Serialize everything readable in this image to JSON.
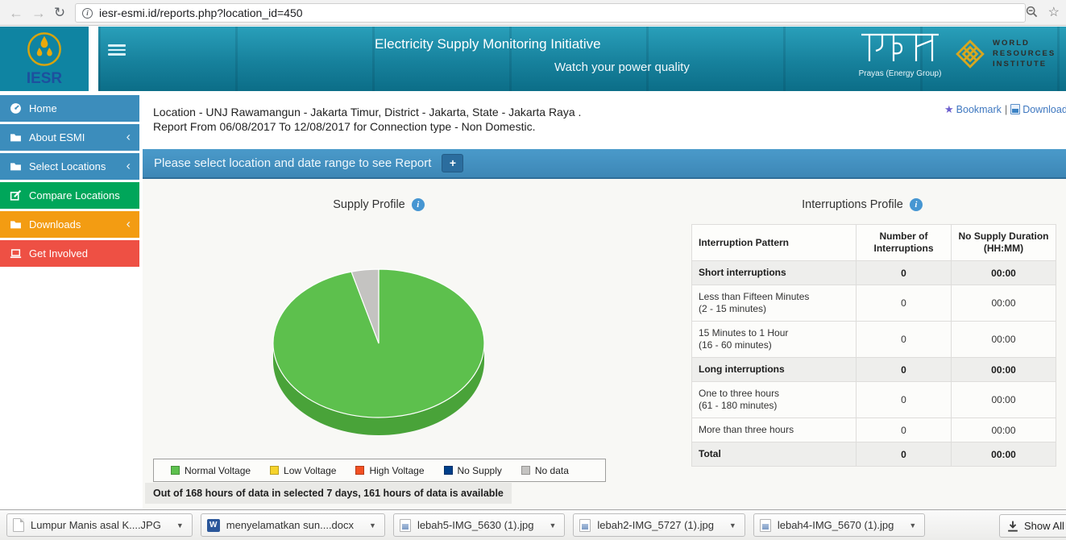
{
  "browser": {
    "url": "iesr-esmi.id/reports.php?location_id=450"
  },
  "header": {
    "title": "Electricity Supply Monitoring Initiative",
    "subtitle": "Watch your power quality",
    "logo_text": "IESR",
    "prayas_caption": "Prayas (Energy Group)",
    "wri_lines": [
      "WORLD",
      "RESOURCES",
      "INSTITUTE"
    ]
  },
  "sidebar": {
    "items": [
      {
        "label": "Home",
        "icon": "dashboard-icon",
        "color": "#3c8dbc",
        "chevron": false
      },
      {
        "label": "About ESMI",
        "icon": "folder-icon",
        "color": "#3c8dbc",
        "chevron": true
      },
      {
        "label": "Select Locations",
        "icon": "folder-icon",
        "color": "#3c8dbc",
        "chevron": true
      },
      {
        "label": "Compare Locations",
        "icon": "edit-icon",
        "color": "#00a65a",
        "chevron": false
      },
      {
        "label": "Downloads",
        "icon": "folder-icon",
        "color": "#f39c12",
        "chevron": true
      },
      {
        "label": "Get Involved",
        "icon": "laptop-icon",
        "color": "#ee5044",
        "chevron": false
      }
    ]
  },
  "report": {
    "location_line": "Location - UNJ Rawamangun - Jakarta Timur, District - Jakarta, State - Jakarta Raya .",
    "period_line": "Report From 06/08/2017 To 12/08/2017 for Connection type - Non Domestic.",
    "bookmark_label": "Bookmark",
    "separator": "|",
    "download_label": "Download Report",
    "filter_prompt": "Please select location and date range to see Report",
    "plus_label": "+"
  },
  "supply_profile": {
    "title": "Supply Profile",
    "note": "Out of 168 hours of data in selected 7 days, 161 hours of data is available"
  },
  "chart_data": {
    "type": "pie",
    "title": "Supply Profile",
    "labels": [
      "Normal Voltage",
      "Low Voltage",
      "High Voltage",
      "No Supply",
      "No data"
    ],
    "values": [
      161,
      0,
      0,
      0,
      7
    ],
    "unit": "hours",
    "total_hours": 168,
    "available_hours": 161,
    "selected_days": 7,
    "colors": [
      "#5dc04d",
      "#f6d32b",
      "#f25022",
      "#003f8a",
      "#c4c3c1"
    ],
    "style": "3d-pie",
    "legend_position": "bottom"
  },
  "interruptions": {
    "title": "Interruptions Profile",
    "columns": [
      "Interruption Pattern",
      "Number of Interruptions",
      "No Supply Duration (HH:MM)"
    ],
    "rows": [
      {
        "label": "Short interruptions",
        "sub": "",
        "count": "0",
        "duration": "00:00",
        "emphasis": true
      },
      {
        "label": "Less than Fifteen Minutes",
        "sub": "(2 - 15 minutes)",
        "count": "0",
        "duration": "00:00",
        "emphasis": false
      },
      {
        "label": "15 Minutes to 1 Hour",
        "sub": "(16 - 60 minutes)",
        "count": "0",
        "duration": "00:00",
        "emphasis": false
      },
      {
        "label": "Long interruptions",
        "sub": "",
        "count": "0",
        "duration": "00:00",
        "emphasis": true
      },
      {
        "label": "One to three hours",
        "sub": "(61 - 180 minutes)",
        "count": "0",
        "duration": "00:00",
        "emphasis": false
      },
      {
        "label": "More than three hours",
        "sub": "",
        "count": "0",
        "duration": "00:00",
        "emphasis": false
      },
      {
        "label": "Total",
        "sub": "",
        "count": "0",
        "duration": "00:00",
        "emphasis": true
      }
    ]
  },
  "downloads_bar": {
    "files": [
      {
        "name": "Lumpur Manis asal K....JPG",
        "icon": "file-icon"
      },
      {
        "name": "menyelamatkan sun....docx",
        "icon": "word-icon"
      },
      {
        "name": "lebah5-IMG_5630 (1).jpg",
        "icon": "image-icon"
      },
      {
        "name": "lebah2-IMG_5727 (1).jpg",
        "icon": "image-icon"
      },
      {
        "name": "lebah4-IMG_5670 (1).jpg",
        "icon": "image-icon"
      }
    ],
    "show_all_label": "Show All"
  }
}
